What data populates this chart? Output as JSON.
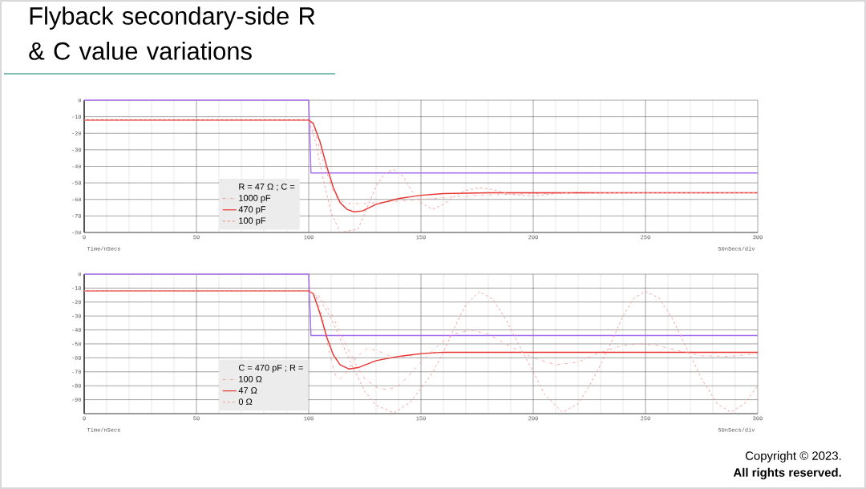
{
  "chart_data": [
    {
      "type": "line",
      "title": "Flyback secondary-side R & C value variations",
      "xlabel": "Time/nSecs",
      "annotations": [
        "50nSecs/div"
      ],
      "legend_title": "R = 47 Ω ;   C =",
      "legend": "bottom left",
      "grid": true,
      "xlim": [
        0,
        300
      ],
      "xticks": [
        0,
        50,
        100,
        150,
        200,
        250,
        300
      ],
      "ylim": [
        -80,
        0
      ],
      "yticks": [
        0,
        -10,
        -20,
        -30,
        -40,
        -50,
        -60,
        -70,
        -80
      ],
      "series": [
        {
          "color": "#a66ef0",
          "line_style": "solid",
          "x": [
            0,
            100,
            101,
            300
          ],
          "values": [
            0,
            0,
            -44,
            -44
          ]
        },
        {
          "name": "1000 pF",
          "color": "#f29a9a",
          "line_style": "dotted",
          "x": [
            0,
            100,
            103,
            106,
            110,
            113,
            117,
            125,
            140,
            150,
            175,
            200,
            250,
            300
          ],
          "values": [
            -12,
            -12,
            -20,
            -35,
            -52,
            -60,
            -62.5,
            -62.5,
            -61,
            -60,
            -57.5,
            -56.5,
            -56,
            -56
          ]
        },
        {
          "name": "470 pF",
          "color": "#e8322e",
          "line_style": "solid",
          "x": [
            0,
            100,
            102,
            105,
            108,
            111,
            114,
            117,
            120,
            124,
            130,
            140,
            150,
            160,
            180,
            300
          ],
          "values": [
            -12,
            -12,
            -14,
            -25,
            -40,
            -53,
            -62,
            -66,
            -67.5,
            -67,
            -63,
            -59.5,
            -57.5,
            -56.5,
            -56,
            -56
          ]
        },
        {
          "name": "100 pF",
          "color": "#f29a9a",
          "line_style": "dashed",
          "x": [
            0,
            100,
            103,
            106,
            110,
            114,
            122,
            126,
            130,
            134,
            138,
            142,
            146,
            150,
            155,
            160,
            165,
            170,
            176,
            182,
            190,
            200,
            210,
            220,
            230,
            250,
            300
          ],
          "values": [
            -12,
            -12,
            -25,
            -45,
            -68,
            -80,
            -78,
            -65,
            -52,
            -44,
            -42,
            -46,
            -55,
            -62,
            -66,
            -63,
            -58,
            -54.5,
            -53,
            -54,
            -57,
            -58,
            -56.5,
            -55.5,
            -56,
            -56,
            -56
          ]
        }
      ]
    },
    {
      "type": "line",
      "xlabel": "Time/nSecs",
      "annotations": [
        "50nSecs/div",
        "Copyright © 2023.",
        "All rights reserved."
      ],
      "legend_title": "C = 470 pF ;   R =",
      "legend": "bottom left",
      "grid": true,
      "xlim": [
        0,
        300
      ],
      "xticks": [
        0,
        50,
        100,
        150,
        200,
        250,
        300
      ],
      "ylim": [
        -100,
        0
      ],
      "yticks": [
        0,
        -10,
        -20,
        -30,
        -40,
        -50,
        -60,
        -70,
        -80,
        -90,
        {
          "value": -100,
          "label": null
        }
      ],
      "series": [
        {
          "color": "#a66ef0",
          "line_style": "solid",
          "x": [
            0,
            100,
            101,
            300
          ],
          "values": [
            0,
            0,
            -44,
            -44
          ]
        },
        {
          "name": "100 Ω",
          "color": "#f29a9a",
          "line_style": "dotted",
          "x": [
            0,
            100,
            103,
            106,
            109,
            112,
            114,
            117,
            121,
            126,
            131,
            138,
            145,
            155,
            300
          ],
          "values": [
            -12,
            -12,
            -15,
            -30,
            -55,
            -73,
            -75,
            -70,
            -60,
            -53,
            -55,
            -60,
            -58.5,
            -56,
            -56
          ]
        },
        {
          "name": "47 Ω",
          "color": "#e8322e",
          "line_style": "solid",
          "x": [
            0,
            100,
            102,
            105,
            108,
            111,
            114,
            118,
            122,
            130,
            140,
            150,
            160,
            300
          ],
          "values": [
            -12,
            -12,
            -14,
            -28,
            -45,
            -58,
            -65,
            -68,
            -67,
            -62,
            -59,
            -57,
            -56,
            -56
          ]
        },
        {
          "color": "#f29a9a",
          "line_style": "dotted",
          "x": [
            0,
            100,
            105,
            110,
            115,
            120,
            125,
            130,
            135,
            140,
            145,
            150,
            155,
            160,
            165,
            172,
            180,
            190,
            200,
            210,
            220,
            230,
            240,
            248,
            255,
            265,
            275,
            287,
            300
          ],
          "values": [
            -12,
            -12,
            -16,
            -28,
            -45,
            -62,
            -75,
            -81,
            -83,
            -80,
            -72,
            -63,
            -55,
            -48,
            -43,
            -40,
            -43,
            -52,
            -60,
            -65,
            -63,
            -56,
            -51,
            -50,
            -51,
            -55,
            -58.5,
            -59,
            -57
          ]
        },
        {
          "name": "0 Ω",
          "color": "#f29a9a",
          "line_style": "dashed",
          "x": [
            0,
            100,
            105,
            110,
            115,
            120,
            125,
            130,
            138,
            145,
            150,
            155,
            160,
            165,
            170,
            176,
            182,
            188,
            195,
            200,
            205,
            213,
            220,
            225,
            230,
            235,
            240,
            245,
            250,
            256,
            262,
            268,
            275,
            282,
            288,
            294,
            300
          ],
          "values": [
            -12,
            -12,
            -18,
            -32,
            -50,
            -68,
            -84,
            -94,
            -99.5,
            -92,
            -82,
            -71,
            -56,
            -38,
            -22,
            -12.5,
            -18,
            -33,
            -55,
            -70,
            -86,
            -99,
            -93,
            -80,
            -65,
            -48,
            -30,
            -17,
            -12.5,
            -17,
            -32,
            -52,
            -75,
            -93,
            -99,
            -93,
            -80
          ]
        }
      ]
    }
  ]
}
